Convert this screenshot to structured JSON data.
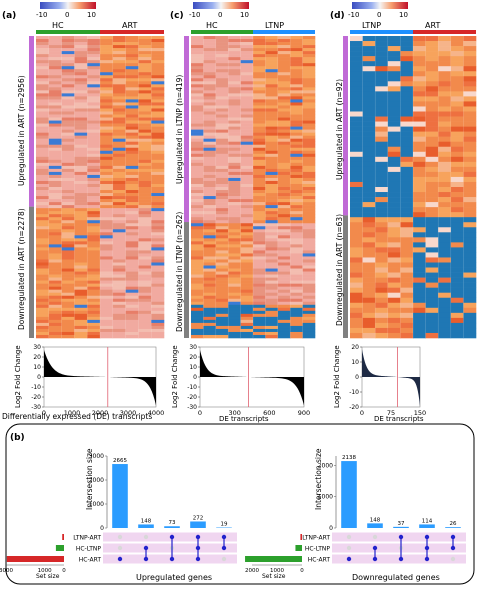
{
  "figure": {
    "colorbar_ticks": [
      "-10",
      "0",
      "10"
    ],
    "colors": {
      "blue": "#1f77b4",
      "orange": "#ff7f0e",
      "hc": "#2ca02c",
      "art": "#d62728",
      "ltnp": "#1e90ff",
      "purple": "#c06ad6",
      "grey": "#808080",
      "bar": "#2b9cff"
    }
  },
  "panels": {
    "a": {
      "label": "(a)",
      "group_left": "HC",
      "group_right": "ART",
      "up_label": "Upregulated in ART (n=2956)",
      "down_label": "Downregulated in ART (n=2278)",
      "fc_ylabel": "Log2 Fold Change",
      "fc_xlabel": "Differentially expressed (DE) transcripts",
      "fc_xticks": [
        "0",
        "1000",
        "2000",
        "3000",
        "4000"
      ],
      "fc_yticks": [
        "30",
        "20",
        "10",
        "0",
        "-10",
        "-20",
        "-30"
      ]
    },
    "c": {
      "label": "(c)",
      "group_left": "HC",
      "group_right": "LTNP",
      "up_label": "Upregulated in LTNP (n=419)",
      "down_label": "Downregulated in LTNP (n=262)",
      "fc_ylabel": "Log2 Fold Change",
      "fc_xlabel": "DE transcripts",
      "fc_xticks": [
        "0",
        "300",
        "600",
        "900"
      ],
      "fc_yticks": [
        "30",
        "20",
        "10",
        "0",
        "-10",
        "-20",
        "-30"
      ]
    },
    "d": {
      "label": "(d)",
      "group_left": "LTNP",
      "group_right": "ART",
      "up_label": "Upregulated in ART (n=92)",
      "down_label": "Downregulated in ART (n=63)",
      "fc_ylabel": "Log2 Fold Change",
      "fc_xlabel": "DE transcripts",
      "fc_xticks": [
        "0",
        "75",
        "150"
      ],
      "fc_yticks": [
        "20",
        "10",
        "0",
        "-10",
        "-20"
      ]
    },
    "b": {
      "label": "(b)",
      "ylabel": "Intersection size",
      "sets": [
        "LTNP-ART",
        "HC-LTNP",
        "HC-ART"
      ],
      "set_size_label": "Set size",
      "up": {
        "title": "Upregulated genes",
        "yticks": [
          "3000",
          "2000",
          "1000",
          "0"
        ],
        "setsize_ticks": [
          "3000",
          "1000",
          "0"
        ]
      },
      "down": {
        "title": "Downregulated genes",
        "yticks": [
          "2000",
          "1000",
          "0"
        ],
        "setsize_ticks": [
          "2000",
          "1000",
          "0"
        ]
      }
    }
  },
  "chart_data": [
    {
      "type": "bar",
      "title": "Upregulated genes",
      "ylabel": "Intersection size",
      "categories": [
        "HC-ART only",
        "HC-LTNP & HC-ART",
        "LTNP-ART & HC-ART",
        "HC-LTNP & LTNP-ART & HC-ART",
        "LTNP-ART & HC-LTNP"
      ],
      "values": [
        2665,
        148,
        73,
        272,
        19
      ],
      "ylim": [
        0,
        3000
      ],
      "set_sizes": {
        "LTNP-ART": 92,
        "HC-LTNP": 419,
        "HC-ART": 2956
      }
    },
    {
      "type": "bar",
      "title": "Downregulated genes",
      "ylabel": "Intersection size",
      "categories": [
        "HC-ART only",
        "HC-LTNP & HC-ART",
        "LTNP-ART & HC-ART",
        "HC-LTNP & LTNP-ART & HC-ART",
        "LTNP-ART & HC-LTNP"
      ],
      "values": [
        2138,
        148,
        37,
        114,
        26
      ],
      "ylim": [
        0,
        2300
      ],
      "set_sizes": {
        "LTNP-ART": 63,
        "HC-LTNP": 262,
        "HC-ART": 2278
      }
    }
  ]
}
